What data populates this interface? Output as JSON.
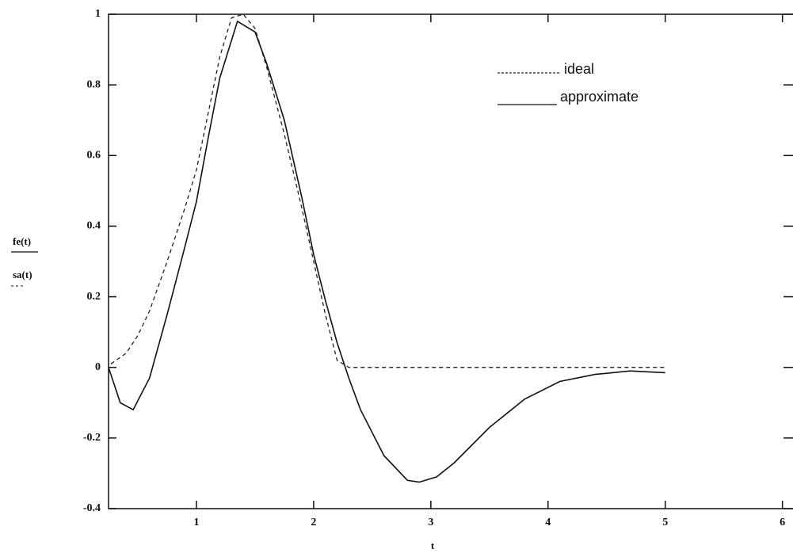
{
  "chart_data": {
    "type": "line",
    "xlabel": "t",
    "ylabels": [
      "fe(t)",
      "sa(t)"
    ],
    "xlim": [
      0.25,
      6.09
    ],
    "ylim": [
      -0.4,
      1
    ],
    "xticks": [
      1,
      2,
      3,
      4,
      5,
      6
    ],
    "yticks": [
      -0.4,
      -0.2,
      0,
      0.2,
      0.4,
      0.6,
      0.8,
      1
    ],
    "series": [
      {
        "name": "ideal",
        "color": "#222222",
        "dash": true,
        "x": [
          0.27,
          0.4,
          0.5,
          0.6,
          0.75,
          0.9,
          1,
          1.1,
          1.2,
          1.3,
          1.4,
          1.5,
          1.6,
          1.75,
          1.9,
          2,
          2.1,
          2.2,
          2.3,
          2.5,
          3,
          3.5,
          4,
          4.5,
          5
        ],
        "values": [
          0.01,
          0.04,
          0.09,
          0.16,
          0.3,
          0.45,
          0.56,
          0.72,
          0.88,
          0.99,
          1,
          0.96,
          0.85,
          0.66,
          0.45,
          0.3,
          0.15,
          0.02,
          0,
          0,
          0,
          0,
          0,
          0,
          0
        ]
      },
      {
        "name": "approximate",
        "color": "#111111",
        "dash": false,
        "x": [
          0.25,
          0.35,
          0.46,
          0.6,
          0.75,
          0.9,
          1,
          1.1,
          1.2,
          1.35,
          1.5,
          1.6,
          1.75,
          1.9,
          2,
          2.1,
          2.2,
          2.3,
          2.4,
          2.6,
          2.8,
          2.9,
          3.05,
          3.2,
          3.5,
          3.8,
          4.1,
          4.4,
          4.7,
          5
        ],
        "values": [
          0,
          -0.1,
          -0.12,
          -0.03,
          0.15,
          0.34,
          0.47,
          0.65,
          0.82,
          0.98,
          0.95,
          0.86,
          0.7,
          0.48,
          0.32,
          0.19,
          0.07,
          -0.03,
          -0.12,
          -0.25,
          -0.32,
          -0.325,
          -0.31,
          -0.27,
          -0.17,
          -0.09,
          -0.04,
          -0.02,
          -0.01,
          -0.015
        ]
      }
    ]
  }
}
